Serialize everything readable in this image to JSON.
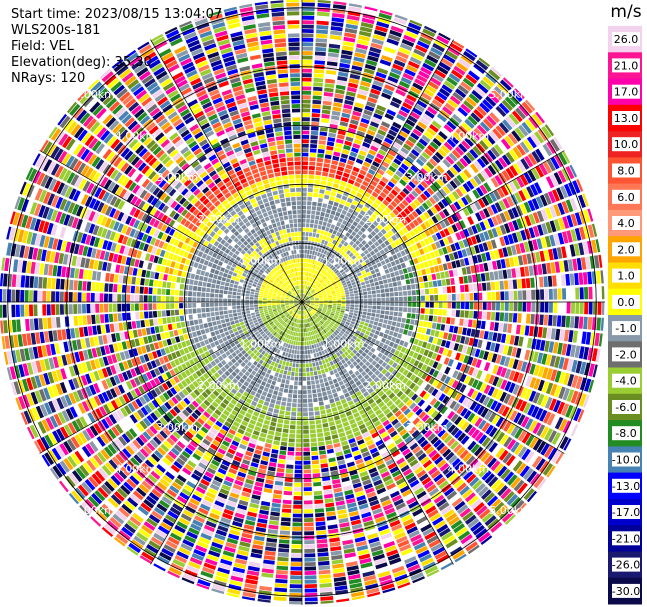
{
  "header": {
    "start_time": "Start time: 2023/08/15 13:04:07",
    "instrument": "WLS200s-181",
    "field": "Field: VEL",
    "elevation": "Elevation(deg): 35.30",
    "nrays": "NRays: 120"
  },
  "chart_data": {
    "type": "heatmap",
    "projection": "polar-ppi",
    "n_rays": 120,
    "ring_labels": [
      "1.00km",
      "2.00km",
      "3.00km",
      "4.00km",
      "5.00km"
    ],
    "range_max_km": 5.15,
    "colorbar": {
      "unit": "m/s",
      "ticks": [
        "26.0",
        "21.0",
        "17.0",
        "13.0",
        "10.0",
        "8.0",
        "6.0",
        "4.0",
        "2.0",
        "1.0",
        "0.0",
        "-1.0",
        "-2.0",
        "-4.0",
        "-6.0",
        "-8.0",
        "-10.0",
        "-13.0",
        "-17.0",
        "-21.0",
        "-26.0",
        "-30.0"
      ],
      "colors": [
        "#f2d2ec",
        "#ff1493",
        "#ff00aa",
        "#ff0000",
        "#ee2222",
        "#ff5533",
        "#ff7755",
        "#ff9977",
        "#ffa500",
        "#ffdd00",
        "#ffff00",
        "#8899aa",
        "#6e6e6e",
        "#9acd32",
        "#6b8e23",
        "#228b22",
        "#4682b4",
        "#0000ff",
        "#0000cd",
        "#000099",
        "#191970",
        "#0a0a4a"
      ]
    },
    "structure": [
      {
        "range_km": [
          0.0,
          0.25
        ],
        "dominant": "mixed-green"
      },
      {
        "range_km": [
          0.25,
          0.75
        ],
        "dominant": "yellow-north / green-south"
      },
      {
        "range_km": [
          0.75,
          2.1
        ],
        "dominant": "gray (near-zero)"
      },
      {
        "range_km": [
          2.1,
          2.6
        ],
        "dominant": "yellow/red north, green south"
      },
      {
        "range_km": [
          2.6,
          5.15
        ],
        "dominant": "noise"
      }
    ]
  }
}
